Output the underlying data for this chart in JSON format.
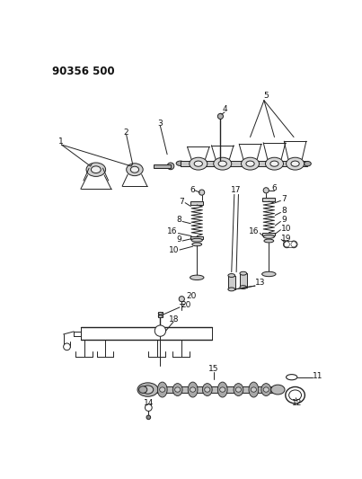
{
  "title": "90356 500",
  "bg_color": "#ffffff",
  "lc": "#222222",
  "tc": "#111111",
  "figsize": [
    4.03,
    5.33
  ],
  "dpi": 100,
  "lw": 0.7
}
